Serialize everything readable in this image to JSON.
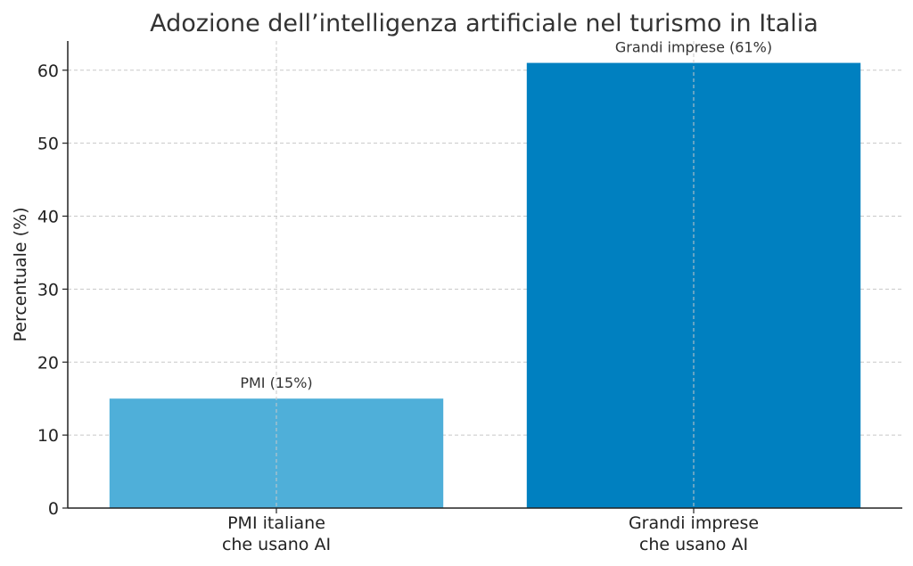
{
  "chart_data": {
    "type": "bar",
    "title": "Adozione dell’intelligenza artificiale nel turismo in Italia",
    "xlabel": "",
    "ylabel": "Percentuale (%)",
    "ylim": [
      0,
      64
    ],
    "yticks": [
      0,
      10,
      20,
      30,
      40,
      50,
      60
    ],
    "grid": true,
    "categories": [
      [
        "PMI italiane",
        "che usano AI"
      ],
      [
        "Grandi imprese",
        "che usano AI"
      ]
    ],
    "values": [
      15,
      61
    ],
    "data_labels": [
      "PMI (15%)",
      "Grandi imprese (61%)"
    ],
    "colors": [
      "#4fafd9",
      "#0080c0"
    ]
  }
}
